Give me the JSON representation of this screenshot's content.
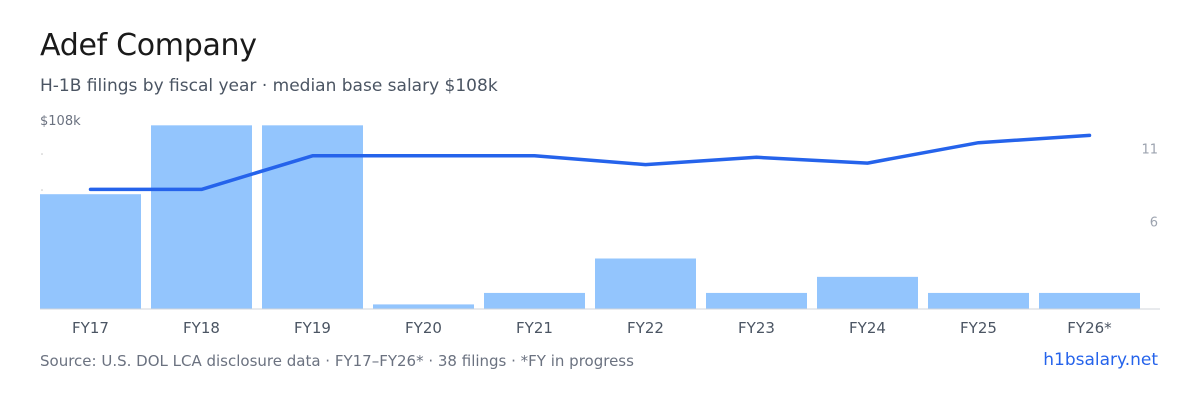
{
  "header": {
    "title": "Adef Company",
    "subtitle": "H-1B filings by fiscal year · median base salary $108k"
  },
  "footer": {
    "source": "Source: U.S. DOL LCA disclosure data · FY17–FY26* · 38 filings · *FY in progress",
    "link": "h1bsalary.net"
  },
  "colors": {
    "bar": "#93c5fd",
    "line": "#2563eb",
    "axis_text": "#6b7280",
    "right_axis_text": "#9ca3af",
    "baseline": "#d1d5db"
  },
  "chart_data": {
    "type": "bar",
    "categories": [
      "FY17",
      "FY18",
      "FY19",
      "FY20",
      "FY21",
      "FY22",
      "FY23",
      "FY24",
      "FY25",
      "FY26*"
    ],
    "series": [
      {
        "type": "bar",
        "axis": "left",
        "values": [
          5,
          8,
          8,
          0.2,
          0.7,
          2.2,
          0.7,
          1.4,
          0.7,
          0.7
        ]
      },
      {
        "type": "line",
        "axis": "right",
        "values": [
          8.2,
          8.2,
          10.5,
          10.5,
          10.5,
          9.9,
          10.4,
          10.0,
          11.4,
          11.9
        ]
      }
    ],
    "left_axis": {
      "label": "$108k",
      "ylim": [
        0,
        9.8
      ]
    },
    "right_axis": {
      "ticks": [
        11,
        6
      ],
      "ylim": [
        0,
        14.6
      ]
    }
  }
}
